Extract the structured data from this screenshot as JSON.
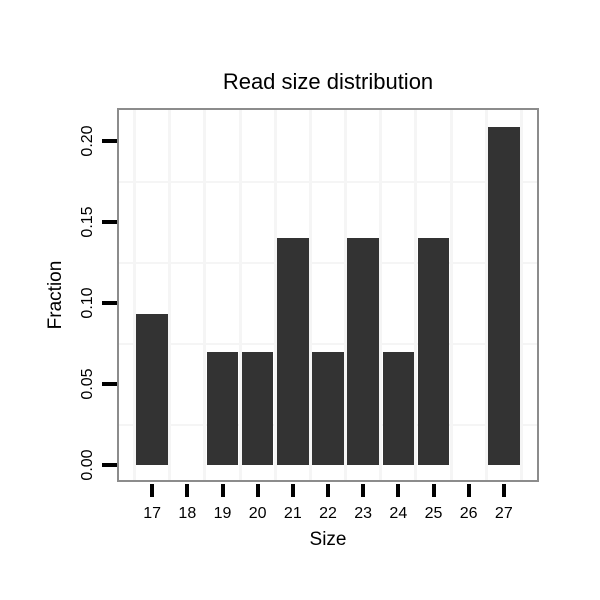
{
  "chart_data": {
    "type": "bar",
    "title": "Read size distribution",
    "xlabel": "Size",
    "ylabel": "Fraction",
    "categories": [
      17,
      18,
      19,
      20,
      21,
      22,
      23,
      24,
      25,
      26,
      27
    ],
    "values": [
      0.093,
      0,
      0.07,
      0.07,
      0.14,
      0.07,
      0.14,
      0.07,
      0.14,
      0,
      0.209
    ],
    "bar_width_units": 0.9,
    "xlim": [
      16,
      28
    ],
    "ylim": [
      -0.0105,
      0.2205
    ],
    "x_ticks": [
      17,
      18,
      19,
      20,
      21,
      22,
      23,
      24,
      25,
      26,
      27
    ],
    "x_tick_labels": [
      "17",
      "18",
      "19",
      "20",
      "21",
      "22",
      "23",
      "24",
      "25",
      "26",
      "27"
    ],
    "y_ticks": [
      0,
      0.05,
      0.1,
      0.15,
      0.2
    ],
    "y_tick_labels": [
      "0.00",
      "0.05",
      "0.10",
      "0.15",
      "0.20"
    ],
    "grid": {
      "x_minor": [
        16.5,
        17.5,
        18.5,
        19.5,
        20.5,
        21.5,
        22.5,
        23.5,
        24.5,
        25.5,
        26.5,
        27.5
      ],
      "y_minor": [
        0.025,
        0.075,
        0.125,
        0.175
      ]
    },
    "legend": "none",
    "colors": {
      "bar": "#333333",
      "panel_border": "#8c8c8c",
      "grid": "#f5f5f5",
      "tick": "#000000",
      "text": "#000000",
      "background": "#ffffff"
    }
  }
}
